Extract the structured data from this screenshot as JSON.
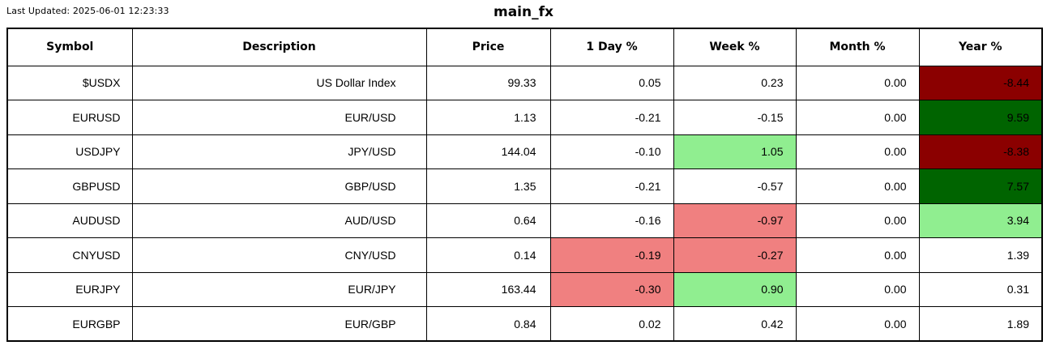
{
  "header": {
    "last_updated": "Last Updated: 2025-06-01 12:23:33",
    "title": "main_fx"
  },
  "colors": {
    "strong_negative": "#8b0000",
    "strong_positive": "#006400",
    "mild_negative": "#f08080",
    "mild_positive": "#90ee90",
    "border": "#000000",
    "background": "#ffffff",
    "text": "#000000"
  },
  "chart_data": {
    "type": "table",
    "title": "main_fx",
    "columns": [
      "Symbol",
      "Description",
      "Price",
      "1 Day %",
      "Week %",
      "Month %",
      "Year %"
    ],
    "rows": [
      {
        "symbol": "$USDX",
        "description": "US Dollar Index",
        "price": "99.33",
        "day": "0.05",
        "week": "0.23",
        "month": "0.00",
        "year": "-8.44",
        "cell_colors": {
          "year": "strong-neg"
        }
      },
      {
        "symbol": "EURUSD",
        "description": "EUR/USD",
        "price": "1.13",
        "day": "-0.21",
        "week": "-0.15",
        "month": "0.00",
        "year": "9.59",
        "cell_colors": {
          "year": "strong-pos"
        }
      },
      {
        "symbol": "USDJPY",
        "description": "JPY/USD",
        "price": "144.04",
        "day": "-0.10",
        "week": "1.05",
        "month": "0.00",
        "year": "-8.38",
        "cell_colors": {
          "week": "mild-pos",
          "year": "strong-neg"
        }
      },
      {
        "symbol": "GBPUSD",
        "description": "GBP/USD",
        "price": "1.35",
        "day": "-0.21",
        "week": "-0.57",
        "month": "0.00",
        "year": "7.57",
        "cell_colors": {
          "year": "strong-pos"
        }
      },
      {
        "symbol": "AUDUSD",
        "description": "AUD/USD",
        "price": "0.64",
        "day": "-0.16",
        "week": "-0.97",
        "month": "0.00",
        "year": "3.94",
        "cell_colors": {
          "week": "mild-neg",
          "year": "mild-pos"
        }
      },
      {
        "symbol": "CNYUSD",
        "description": "CNY/USD",
        "price": "0.14",
        "day": "-0.19",
        "week": "-0.27",
        "month": "0.00",
        "year": "1.39",
        "cell_colors": {
          "day": "mild-neg",
          "week": "mild-neg"
        }
      },
      {
        "symbol": "EURJPY",
        "description": "EUR/JPY",
        "price": "163.44",
        "day": "-0.30",
        "week": "0.90",
        "month": "0.00",
        "year": "0.31",
        "cell_colors": {
          "day": "mild-neg",
          "week": "mild-pos"
        }
      },
      {
        "symbol": "EURGBP",
        "description": "EUR/GBP",
        "price": "0.84",
        "day": "0.02",
        "week": "0.42",
        "month": "0.00",
        "year": "1.89",
        "cell_colors": {}
      }
    ]
  }
}
